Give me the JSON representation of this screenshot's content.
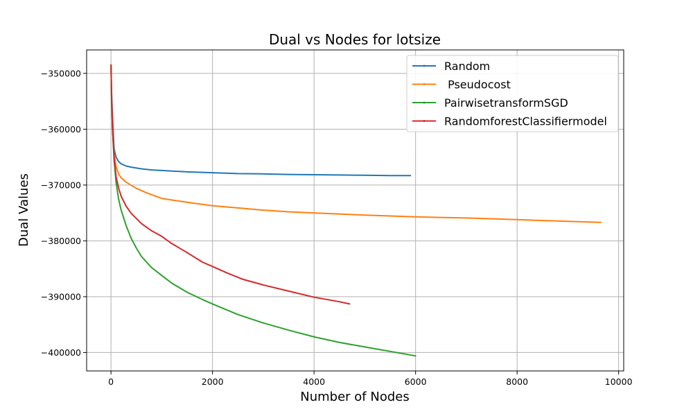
{
  "chart_data": {
    "type": "line",
    "title": "Dual vs Nodes for lotsize",
    "xlabel": "Number of Nodes",
    "ylabel": "Dual Values",
    "xlim": [
      -480,
      10100
    ],
    "ylim": [
      -403300,
      -345800
    ],
    "xticks": [
      0,
      2000,
      4000,
      6000,
      8000,
      10000
    ],
    "xtick_labels": [
      "0",
      "2000",
      "4000",
      "6000",
      "8000",
      "10000"
    ],
    "yticks": [
      -350000,
      -360000,
      -370000,
      -380000,
      -390000,
      -400000
    ],
    "ytick_labels": [
      "−350000",
      "−360000",
      "−370000",
      "−380000",
      "−390000",
      "−400000"
    ],
    "grid": true,
    "legend_position": "upper right",
    "series": [
      {
        "name": "Random",
        "color": "#1f77b4",
        "x": [
          0,
          10,
          30,
          60,
          100,
          150,
          200,
          300,
          400,
          600,
          800,
          1000,
          1500,
          2000,
          2500,
          3000,
          3500,
          4000,
          4500,
          5000,
          5500,
          5900
        ],
        "y": [
          -348500,
          -353000,
          -358000,
          -363500,
          -365000,
          -365800,
          -366200,
          -366600,
          -366800,
          -367100,
          -367300,
          -367400,
          -367650,
          -367800,
          -367950,
          -368000,
          -368100,
          -368150,
          -368200,
          -368250,
          -368300,
          -368300
        ]
      },
      {
        "name": " Pseudocost",
        "color": "#ff7f0e",
        "x": [
          0,
          10,
          30,
          60,
          100,
          150,
          200,
          300,
          500,
          700,
          1000,
          1500,
          2000,
          2500,
          3000,
          3500,
          4000,
          5000,
          6000,
          7000,
          8000,
          9000,
          9650
        ],
        "y": [
          -348500,
          -354000,
          -360000,
          -364500,
          -366700,
          -368000,
          -368700,
          -369500,
          -370600,
          -371400,
          -372400,
          -373100,
          -373700,
          -374100,
          -374500,
          -374800,
          -375000,
          -375400,
          -375700,
          -375900,
          -376200,
          -376500,
          -376700
        ]
      },
      {
        "name": "PairwisetransformSGD",
        "color": "#2ca02c",
        "x": [
          0,
          10,
          30,
          60,
          100,
          150,
          200,
          300,
          400,
          500,
          600,
          800,
          1000,
          1200,
          1500,
          1800,
          2000,
          2500,
          3000,
          3500,
          4000,
          4500,
          5000,
          5500,
          6000
        ],
        "y": [
          -348500,
          -354000,
          -360000,
          -365500,
          -369500,
          -372500,
          -374500,
          -377300,
          -379600,
          -381300,
          -382800,
          -384800,
          -386200,
          -387600,
          -389200,
          -390500,
          -391300,
          -393200,
          -394700,
          -396000,
          -397200,
          -398200,
          -399000,
          -399800,
          -400600
        ]
      },
      {
        "name": "RandomforestClassifiermodel",
        "color": "#d62728",
        "x": [
          0,
          10,
          30,
          60,
          100,
          150,
          200,
          300,
          400,
          600,
          800,
          1000,
          1200,
          1500,
          1800,
          2000,
          2300,
          2600,
          3000,
          3500,
          4000,
          4500,
          4700
        ],
        "y": [
          -348500,
          -354000,
          -360000,
          -365000,
          -368500,
          -370500,
          -372000,
          -373800,
          -375100,
          -376900,
          -378200,
          -379200,
          -380500,
          -382100,
          -383800,
          -384600,
          -385800,
          -386900,
          -387900,
          -389000,
          -390100,
          -390900,
          -391300
        ]
      }
    ]
  }
}
